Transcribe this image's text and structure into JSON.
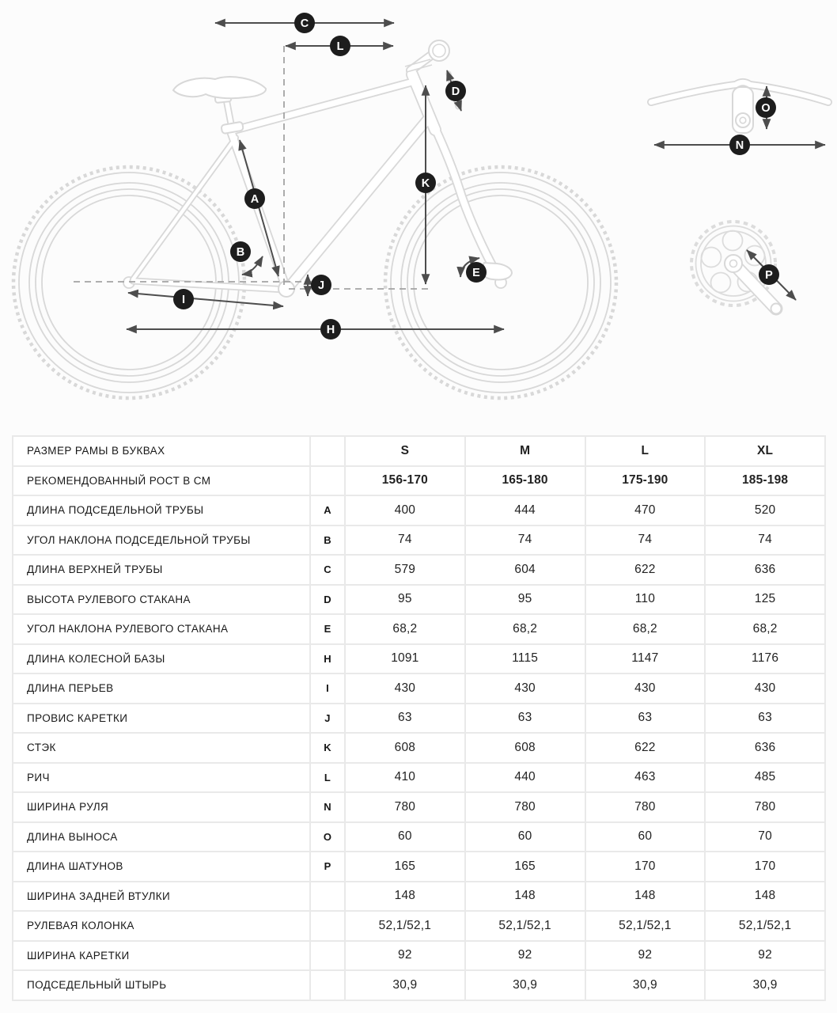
{
  "diagram": {
    "badges": [
      "C",
      "L",
      "D",
      "A",
      "B",
      "K",
      "E",
      "J",
      "I",
      "H",
      "O",
      "N",
      "P"
    ],
    "colors": {
      "badge": "#1d1d1d",
      "badge_text": "#ffffff",
      "arrow": "#4d4d4d",
      "bike_outline": "#d8d8d8",
      "dashed_line": "#a3a3a3"
    }
  },
  "table": {
    "columns": [
      "S",
      "M",
      "L",
      "XL"
    ],
    "rows": [
      {
        "label": "РАЗМЕР РАМЫ В БУКВАХ",
        "letter": "",
        "values": [
          "S",
          "M",
          "L",
          "XL"
        ],
        "em": true
      },
      {
        "label": "РЕКОМЕНДОВАННЫЙ РОСТ В СМ",
        "letter": "",
        "values": [
          "156-170",
          "165-180",
          "175-190",
          "185-198"
        ],
        "em": true
      },
      {
        "label": "ДЛИНА ПОДСЕДЕЛЬНОЙ ТРУБЫ",
        "letter": "A",
        "values": [
          "400",
          "444",
          "470",
          "520"
        ],
        "em": false
      },
      {
        "label": "УГОЛ НАКЛОНА ПОДСЕДЕЛЬНОЙ ТРУБЫ",
        "letter": "B",
        "values": [
          "74",
          "74",
          "74",
          "74"
        ],
        "em": false
      },
      {
        "label": "ДЛИНА ВЕРХНЕЙ ТРУБЫ",
        "letter": "C",
        "values": [
          "579",
          "604",
          "622",
          "636"
        ],
        "em": false
      },
      {
        "label": "ВЫСОТА РУЛЕВОГО СТАКАНА",
        "letter": "D",
        "values": [
          "95",
          "95",
          "110",
          "125"
        ],
        "em": false
      },
      {
        "label": "УГОЛ НАКЛОНА РУЛЕВОГО СТАКАНА",
        "letter": "E",
        "values": [
          "68,2",
          "68,2",
          "68,2",
          "68,2"
        ],
        "em": false
      },
      {
        "label": "ДЛИНА КОЛЕСНОЙ БАЗЫ",
        "letter": "H",
        "values": [
          "1091",
          "1115",
          "1147",
          "1176"
        ],
        "em": false
      },
      {
        "label": "ДЛИНА ПЕРЬЕВ",
        "letter": "I",
        "values": [
          "430",
          "430",
          "430",
          "430"
        ],
        "em": false
      },
      {
        "label": "ПРОВИС КАРЕТКИ",
        "letter": "J",
        "values": [
          "63",
          "63",
          "63",
          "63"
        ],
        "em": false
      },
      {
        "label": "СТЭК",
        "letter": "K",
        "values": [
          "608",
          "608",
          "622",
          "636"
        ],
        "em": false
      },
      {
        "label": "РИЧ",
        "letter": "L",
        "values": [
          "410",
          "440",
          "463",
          "485"
        ],
        "em": false
      },
      {
        "label": "ШИРИНА РУЛЯ",
        "letter": "N",
        "values": [
          "780",
          "780",
          "780",
          "780"
        ],
        "em": false
      },
      {
        "label": "ДЛИНА ВЫНОСА",
        "letter": "O",
        "values": [
          "60",
          "60",
          "60",
          "70"
        ],
        "em": false
      },
      {
        "label": "ДЛИНА ШАТУНОВ",
        "letter": "P",
        "values": [
          "165",
          "165",
          "170",
          "170"
        ],
        "em": false
      },
      {
        "label": "ШИРИНА ЗАДНЕЙ ВТУЛКИ",
        "letter": "",
        "values": [
          "148",
          "148",
          "148",
          "148"
        ],
        "em": false
      },
      {
        "label": "РУЛЕВАЯ КОЛОНКА",
        "letter": "",
        "values": [
          "52,1/52,1",
          "52,1/52,1",
          "52,1/52,1",
          "52,1/52,1"
        ],
        "em": false
      },
      {
        "label": "ШИРИНА КАРЕТКИ",
        "letter": "",
        "values": [
          "92",
          "92",
          "92",
          "92"
        ],
        "em": false
      },
      {
        "label": "ПОДСЕДЕЛЬНЫЙ ШТЫРЬ",
        "letter": "",
        "values": [
          "30,9",
          "30,9",
          "30,9",
          "30,9"
        ],
        "em": false
      }
    ]
  }
}
